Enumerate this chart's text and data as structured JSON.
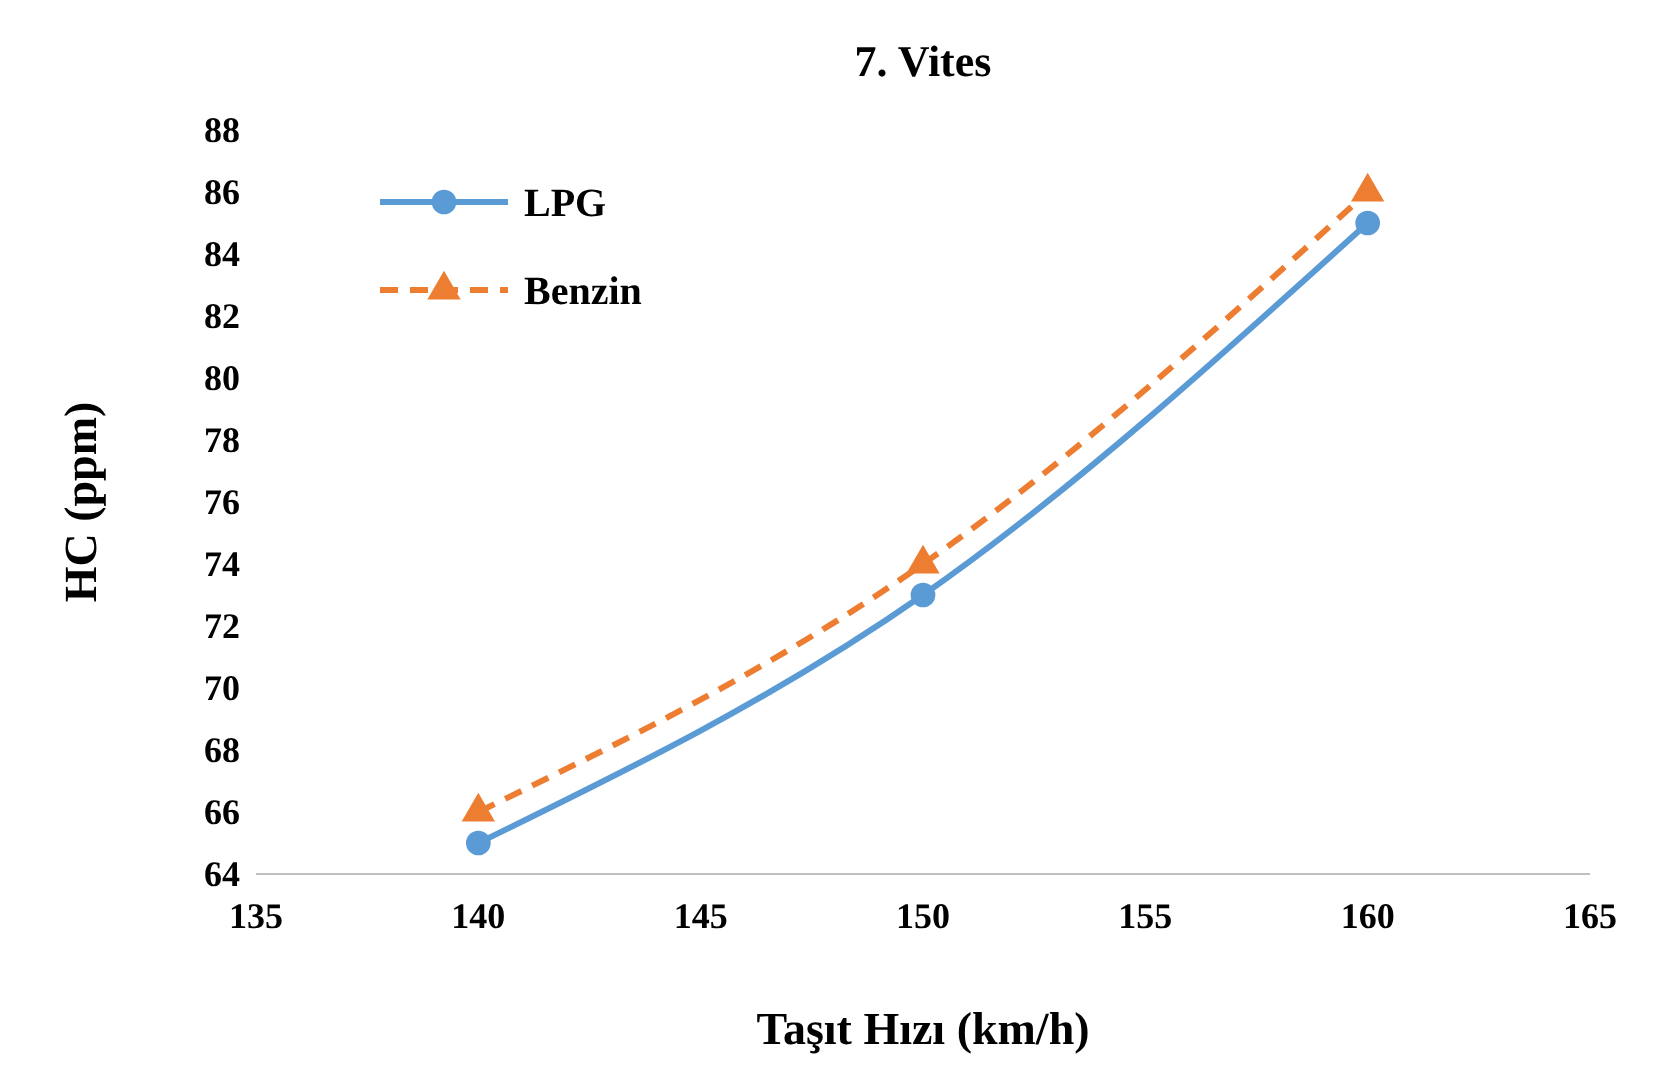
{
  "chart_data": {
    "type": "line",
    "title": "7. Vites",
    "xlabel": "Taşıt Hızı (km/h)",
    "ylabel": "HC (ppm)",
    "x": [
      140,
      150,
      160
    ],
    "series": [
      {
        "name": "LPG",
        "color": "#5b9bd5",
        "values": [
          65,
          73,
          85
        ],
        "marker": "circle",
        "line_style": "solid"
      },
      {
        "name": "Benzin",
        "color": "#ed7d31",
        "values": [
          66,
          74,
          86
        ],
        "marker": "triangle",
        "line_style": "dashed"
      }
    ],
    "xlim": [
      135,
      165
    ],
    "xticks": [
      135,
      140,
      145,
      150,
      155,
      160,
      165
    ],
    "ylim": [
      64,
      88
    ],
    "yticks": [
      64,
      66,
      68,
      70,
      72,
      74,
      76,
      78,
      80,
      82,
      84,
      86,
      88
    ],
    "grid": false,
    "legend": "top left"
  }
}
